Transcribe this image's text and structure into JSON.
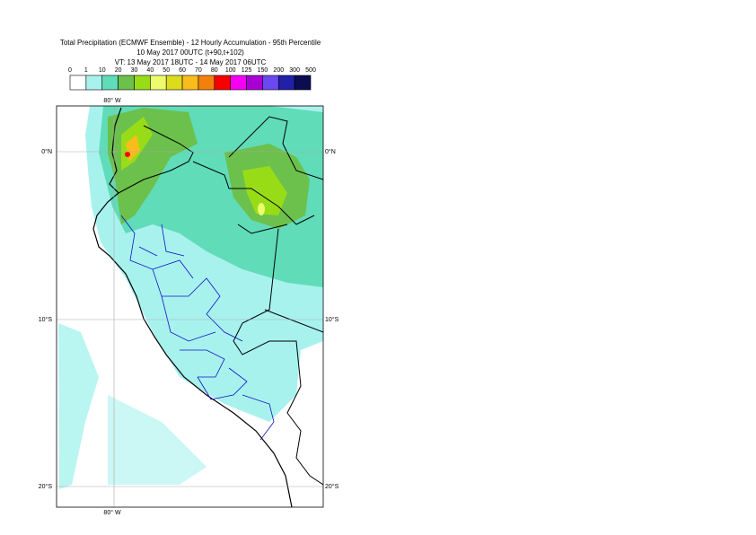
{
  "header": {
    "title": "Total Precipitation (ECMWF Ensemble) - 12 Hourly Accumulation - 95th Percentile",
    "run": "10 May 2017 00UTC (t+90,t+102)",
    "valid": "VT: 13 May 2017 18UTC - 14 May 2017 06UTC"
  },
  "legend": {
    "labels": [
      0,
      1,
      10,
      20,
      30,
      40,
      50,
      60,
      70,
      80,
      100,
      125,
      150,
      200,
      300,
      500
    ],
    "colors": [
      "#ffffff",
      "#a8f2ee",
      "#60dcb8",
      "#6cc04c",
      "#98dc18",
      "#ecfc6c",
      "#dcdc1c",
      "#f8bc1c",
      "#f4800c",
      "#f80000",
      "#f400f4",
      "#a800d4",
      "#6c48f0",
      "#2020a8",
      "#0c0c50"
    ]
  },
  "map": {
    "lon_label": "80° W",
    "lat_labels": [
      "0°N",
      "10°S",
      "20°S"
    ]
  }
}
